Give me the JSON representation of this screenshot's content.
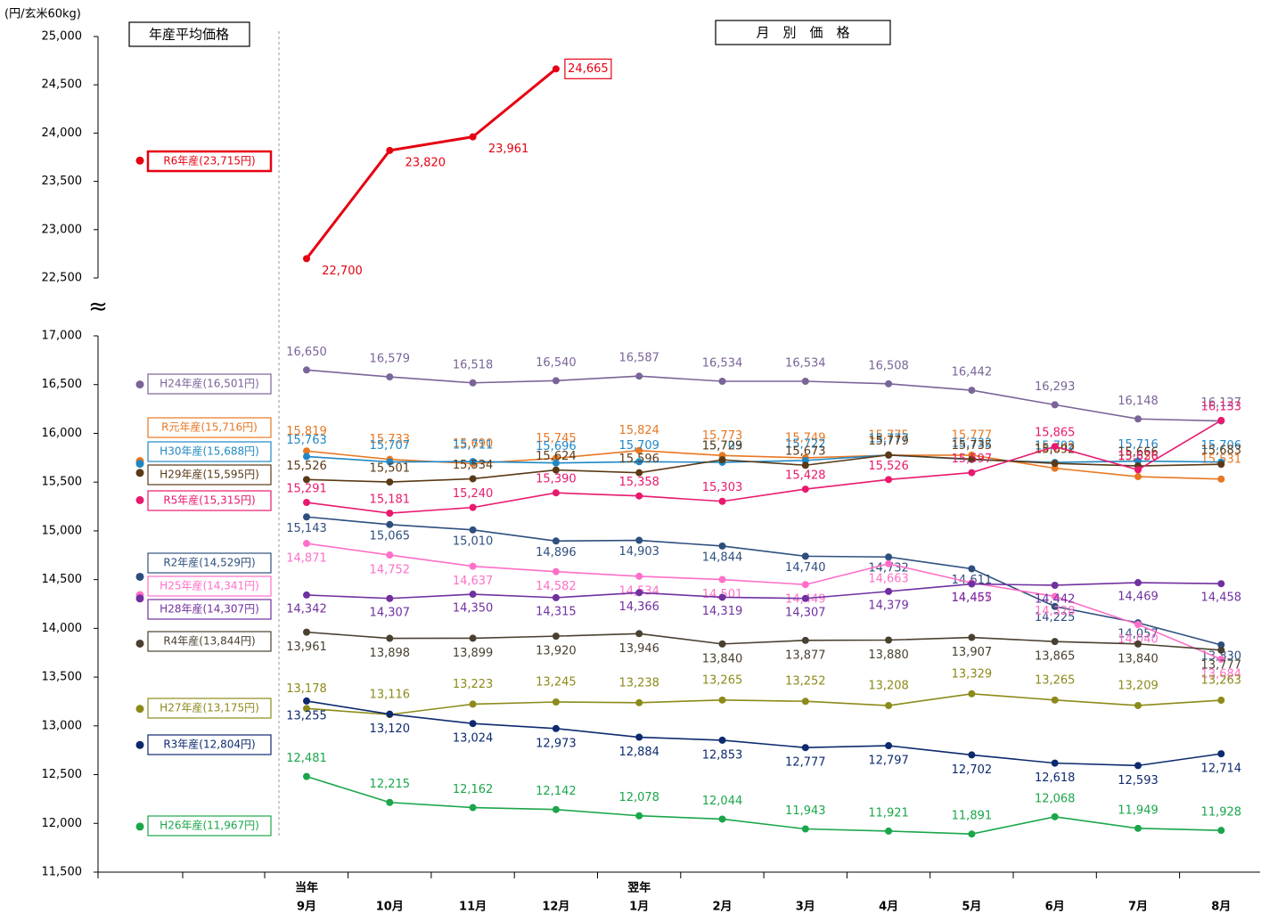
{
  "chart_data": {
    "type": "line",
    "y_unit_label": "(円/玄米60kg)",
    "left_panel_title": "年産平均価格",
    "right_panel_title": "月　別　価　格",
    "axis_break": "≈",
    "categories": [
      "9月",
      "10月",
      "11月",
      "12月",
      "1月",
      "2月",
      "3月",
      "4月",
      "5月",
      "6月",
      "7月",
      "8月"
    ],
    "x_group_labels": [
      "当年",
      null,
      null,
      null,
      "翌年",
      null,
      null,
      null,
      null,
      null,
      null,
      null
    ],
    "ylim": [
      11500,
      17000
    ],
    "yticks": [
      {
        "value": 11500,
        "label": "11,500"
      },
      {
        "value": 12000,
        "label": "12,000"
      },
      {
        "value": 12500,
        "label": "12,500"
      },
      {
        "value": 13000,
        "label": "13,000"
      },
      {
        "value": 13500,
        "label": "13,500"
      },
      {
        "value": 14000,
        "label": "14,000"
      },
      {
        "value": 14500,
        "label": "14,500"
      },
      {
        "value": 15000,
        "label": "15,000"
      },
      {
        "value": 15500,
        "label": "15,500"
      },
      {
        "value": 16000,
        "label": "16,000"
      },
      {
        "value": 16500,
        "label": "16,500"
      },
      {
        "value": 17000,
        "label": "17,000"
      }
    ],
    "upper_ylim": [
      22500,
      25000
    ],
    "upper_yticks": [
      {
        "value": 22500,
        "label": "22,500"
      },
      {
        "value": 23000,
        "label": "23,000"
      },
      {
        "value": 23500,
        "label": "23,500"
      },
      {
        "value": 24000,
        "label": "24,000"
      },
      {
        "value": 24500,
        "label": "24,500"
      },
      {
        "value": 25000,
        "label": "25,000"
      }
    ],
    "series": [
      {
        "name": "R6年産(23,715円)",
        "average": 23715,
        "color": "#e60012",
        "values": [
          22700,
          23820,
          23961,
          24665,
          null,
          null,
          null,
          null,
          null,
          null,
          null,
          null
        ],
        "value_labels": [
          "22,700",
          "23,820",
          "23,961",
          "24,665",
          null,
          null,
          null,
          null,
          null,
          null,
          null,
          null
        ]
      },
      {
        "name": "H24年産(16,501円)",
        "average": 16501,
        "color": "#7a6498",
        "values": [
          16650,
          16579,
          16518,
          16540,
          16587,
          16534,
          16534,
          16508,
          16442,
          16293,
          16148,
          16127
        ],
        "value_labels": [
          "16,650",
          "16,579",
          "16,518",
          "16,540",
          "16,587",
          "16,534",
          "16,534",
          "16,508",
          "16,442",
          "16,293",
          "16,148",
          "16,127"
        ]
      },
      {
        "name": "R元年産(15,716円)",
        "average": 15716,
        "color": "#e87722",
        "values": [
          15819,
          15733,
          15690,
          15745,
          15824,
          15773,
          15749,
          15775,
          15777,
          15642,
          15556,
          15531
        ],
        "value_labels": [
          "15,819",
          "15,733",
          "15,690",
          "15,745",
          "15,824",
          "15,773",
          "15,749",
          "15,775",
          "15,777",
          "15,642",
          "15,556",
          "15,531"
        ]
      },
      {
        "name": "H30年産(15,688円)",
        "average": 15688,
        "color": "#1f88c4",
        "values": [
          15763,
          15707,
          15711,
          15696,
          15709,
          15703,
          15722,
          15777,
          15732,
          15702,
          15716,
          15706
        ],
        "value_labels": [
          "15,763",
          "15,707",
          "15,711",
          "15,696",
          "15,709",
          "15,703",
          "15,722",
          "15,777",
          "15,732",
          "15,702",
          "15,716",
          "15,706"
        ]
      },
      {
        "name": "H29年産(15,595円)",
        "average": 15595,
        "color": "#5a3a16",
        "values": [
          15526,
          15501,
          15534,
          15624,
          15596,
          15729,
          15673,
          15779,
          15735,
          15692,
          15666,
          15683
        ],
        "value_labels": [
          "15,526",
          "15,501",
          "15,534",
          "15,624",
          "15,596",
          "15,729",
          "15,673",
          "15,779",
          "15,735",
          "15,692",
          "15,666",
          "15,683"
        ]
      },
      {
        "name": "R5年産(15,315円)",
        "average": 15315,
        "color": "#e8196e",
        "values": [
          15291,
          15181,
          15240,
          15390,
          15358,
          15303,
          15428,
          15526,
          15597,
          15865,
          15626,
          16133
        ],
        "value_labels": [
          "15,291",
          "15,181",
          "15,240",
          "15,390",
          "15,358",
          "15,303",
          "15,428",
          "15,526",
          "15,597",
          "15,865",
          "15,626",
          "16,133"
        ]
      },
      {
        "name": "R2年産(14,529円)",
        "average": 14529,
        "color": "#2e4f7e",
        "values": [
          15143,
          15065,
          15010,
          14896,
          14903,
          14844,
          14740,
          14732,
          14611,
          14225,
          14057,
          13830
        ],
        "value_labels": [
          "15,143",
          "15,065",
          "15,010",
          "14,896",
          "14,903",
          "14,844",
          "14,740",
          "14,732",
          "14,611",
          "14,225",
          "14,057",
          "13,830"
        ]
      },
      {
        "name": "H25年産(14,341円)",
        "average": 14341,
        "color": "#ff6fc8",
        "values": [
          14871,
          14752,
          14637,
          14582,
          14534,
          14501,
          14449,
          14663,
          14467,
          14328,
          14040,
          13684
        ],
        "value_labels": [
          "14,871",
          "14,752",
          "14,637",
          "14,582",
          "14,534",
          "14,501",
          "14,449",
          "14,663",
          "14,467",
          "14,328",
          "14,040",
          "13,684"
        ]
      },
      {
        "name": "H28年産(14,307円)",
        "average": 14307,
        "color": "#7030a0",
        "values": [
          14342,
          14307,
          14350,
          14315,
          14366,
          14319,
          14307,
          14379,
          14455,
          14442,
          14469,
          14458
        ],
        "value_labels": [
          "14,342",
          "14,307",
          "14,350",
          "14,315",
          "14,366",
          "14,319",
          "14,307",
          "14,379",
          "14,455",
          "14,442",
          "14,469",
          "14,458"
        ]
      },
      {
        "name": "R4年産(13,844円)",
        "average": 13844,
        "color": "#4a4030",
        "values": [
          13961,
          13898,
          13899,
          13920,
          13946,
          13840,
          13877,
          13880,
          13907,
          13865,
          13840,
          13777
        ],
        "value_labels": [
          "13,961",
          "13,898",
          "13,899",
          "13,920",
          "13,946",
          "13,840",
          "13,877",
          "13,880",
          "13,907",
          "13,865",
          "13,840",
          "13,777"
        ]
      },
      {
        "name": "H27年産(13,175円)",
        "average": 13175,
        "color": "#8c8a1a",
        "values": [
          13178,
          13116,
          13223,
          13245,
          13238,
          13265,
          13252,
          13208,
          13329,
          13265,
          13209,
          13263
        ],
        "value_labels": [
          "13,178",
          "13,116",
          "13,223",
          "13,245",
          "13,238",
          "13,265",
          "13,252",
          "13,208",
          "13,329",
          "13,265",
          "13,209",
          "13,263"
        ]
      },
      {
        "name": "R3年産(12,804円)",
        "average": 12804,
        "color": "#0d2a6e",
        "values": [
          13255,
          13120,
          13024,
          12973,
          12884,
          12853,
          12777,
          12797,
          12702,
          12618,
          12593,
          12714
        ],
        "value_labels": [
          "13,255",
          "13,120",
          "13,024",
          "12,973",
          "12,884",
          "12,853",
          "12,777",
          "12,797",
          "12,702",
          "12,618",
          "12,593",
          "12,714"
        ]
      },
      {
        "name": "H26年産(11,967円)",
        "average": 11967,
        "color": "#1aa64a",
        "values": [
          12481,
          12215,
          12162,
          12142,
          12078,
          12044,
          11943,
          11921,
          11891,
          12068,
          11949,
          11928
        ],
        "value_labels": [
          "12,481",
          "12,215",
          "12,162",
          "12,142",
          "12,078",
          "12,044",
          "11,943",
          "11,921",
          "11,891",
          "12,068",
          "11,949",
          "11,928"
        ]
      }
    ]
  }
}
